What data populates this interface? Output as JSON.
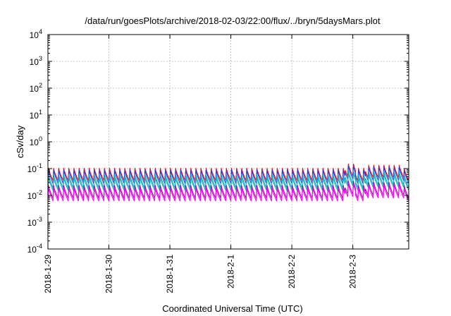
{
  "chart_data": {
    "type": "line",
    "title": "/data/run/goesPlots/archive/2018-02-03/22:00/flux/../bryn/5daysMars.plot",
    "xlabel": "Coordinated Universal Time (UTC)",
    "ylabel": "cSv/day",
    "yscale": "log",
    "ylim": [
      0.0001,
      10000
    ],
    "y_ticks": [
      {
        "base": "10",
        "exp": "-4",
        "value": 0.0001
      },
      {
        "base": "10",
        "exp": "-3",
        "value": 0.001
      },
      {
        "base": "10",
        "exp": "-2",
        "value": 0.01
      },
      {
        "base": "10",
        "exp": "-1",
        "value": 0.1
      },
      {
        "base": "10",
        "exp": "0",
        "value": 1
      },
      {
        "base": "10",
        "exp": "1",
        "value": 10
      },
      {
        "base": "10",
        "exp": "2",
        "value": 100
      },
      {
        "base": "10",
        "exp": "3",
        "value": 1000
      },
      {
        "base": "10",
        "exp": "4",
        "value": 10000
      }
    ],
    "xlim": [
      "2018-01-29 00:00",
      "2018-02-03 22:00"
    ],
    "x_ticks": [
      "2018-1-29",
      "2018-1-30",
      "2018-1-31",
      "2018-2-1",
      "2018-2-2",
      "2018-2-3"
    ],
    "grid": true,
    "sawtooth_period_hours": 2,
    "series": [
      {
        "color": "#ff0000",
        "peak": 0.105,
        "trough": 0.036
      },
      {
        "color": "#2a3fd9",
        "peak": 0.092,
        "trough": 0.028
      },
      {
        "color": "#00a0ff",
        "peak": 0.062,
        "trough": 0.019
      },
      {
        "color": "#17b8a6",
        "peak": 0.047,
        "trough": 0.0155
      },
      {
        "color": "#b400b4",
        "peak": 0.024,
        "trough": 0.0078
      },
      {
        "color": "#ff00ff",
        "peak": 0.019,
        "trough": 0.0062
      }
    ],
    "enhancement": [
      {
        "start": "2018-02-02 21:00",
        "end": "2018-02-03 01:00",
        "factor": 1.45
      },
      {
        "start": "2018-02-03 05:00",
        "end": "2018-02-03 20:00",
        "factor": 1.3
      }
    ]
  }
}
